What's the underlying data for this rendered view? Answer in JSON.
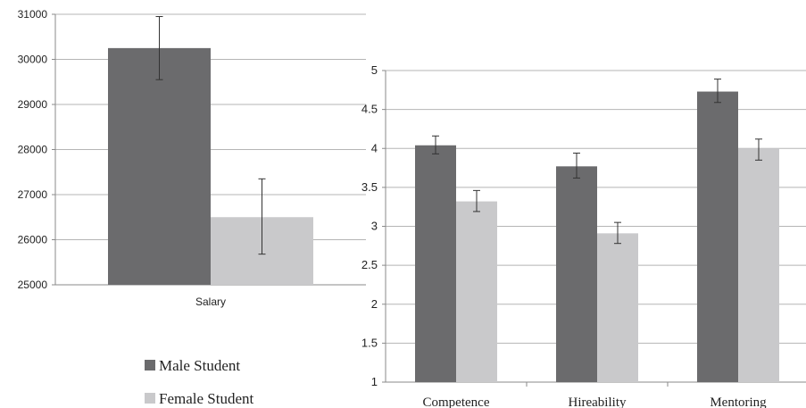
{
  "legend": {
    "items": [
      {
        "label": "Male Student",
        "color": "#6b6b6d"
      },
      {
        "label": "Female Student",
        "color": "#c9c9cb"
      }
    ]
  },
  "colors": {
    "male": "#6b6b6d",
    "female": "#c9c9cb",
    "grid": "#b5b5b5",
    "axis": "#8a8a8a",
    "error_bar": "#333333"
  },
  "chart_data": [
    {
      "type": "bar",
      "categories": [
        "Salary"
      ],
      "series": [
        {
          "name": "Male Student",
          "values": [
            30250
          ],
          "error": [
            [
              29550,
              30950
            ]
          ]
        },
        {
          "name": "Female Student",
          "values": [
            26500
          ],
          "error": [
            [
              25680,
              27350
            ]
          ]
        }
      ],
      "ylim": [
        25000,
        31000
      ],
      "yticks": [
        25000,
        26000,
        27000,
        28000,
        29000,
        30000,
        31000
      ],
      "grid": true,
      "legend_position": "bottom-left"
    },
    {
      "type": "bar",
      "categories": [
        "Competence",
        "Hireability",
        "Mentoring"
      ],
      "series": [
        {
          "name": "Male Student",
          "values": [
            4.04,
            3.77,
            4.73
          ],
          "error": [
            [
              3.93,
              4.16
            ],
            [
              3.62,
              3.94
            ],
            [
              4.59,
              4.89
            ]
          ]
        },
        {
          "name": "Female Student",
          "values": [
            3.32,
            2.91,
            4.0
          ],
          "error": [
            [
              3.19,
              3.46
            ],
            [
              2.78,
              3.05
            ],
            [
              3.85,
              4.12
            ]
          ]
        }
      ],
      "ylim": [
        1,
        5
      ],
      "yticks": [
        "1",
        "1.5",
        "2",
        "2.5",
        "3",
        "3.5",
        "4",
        "4.5",
        "5"
      ],
      "grid": true,
      "legend_position": "bottom-left"
    }
  ]
}
